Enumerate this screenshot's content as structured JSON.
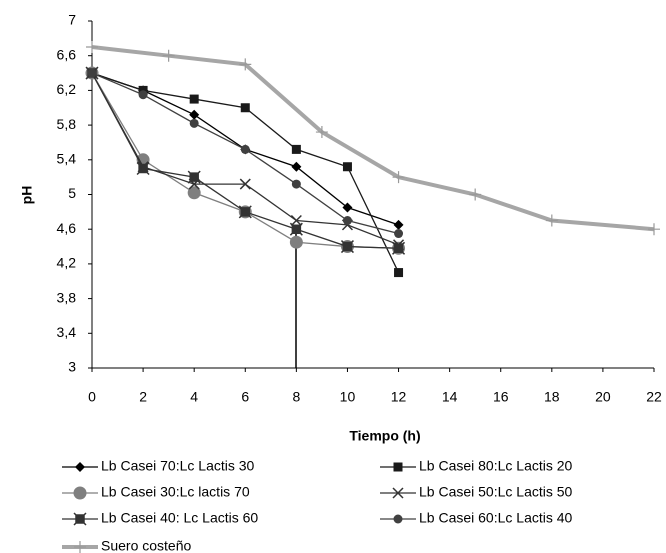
{
  "chart_data": {
    "type": "line",
    "x_label": "Tiempo (h)",
    "y_label": "pH",
    "x": [
      0,
      2,
      4,
      6,
      8,
      10,
      12
    ],
    "xlim": [
      0,
      22
    ],
    "xticks": [
      0,
      2,
      4,
      6,
      8,
      10,
      12,
      14,
      16,
      18,
      20,
      22
    ],
    "ylim": [
      3,
      7
    ],
    "yticks": [
      3,
      {
        "value": 3.4,
        "label": "3,4"
      },
      {
        "value": 3.8,
        "label": "3,8"
      },
      {
        "value": 4.2,
        "label": "4,2"
      },
      {
        "value": 4.6,
        "label": "4,6"
      },
      5,
      {
        "value": 5.4,
        "label": "5,4"
      },
      {
        "value": 5.8,
        "label": "5,8"
      },
      {
        "value": 6.2,
        "label": "6,2"
      },
      {
        "value": 6.6,
        "label": "6,6"
      },
      7
    ],
    "grid": false,
    "series": [
      {
        "name": "Lb Casei 70:Lc Lactis 30",
        "color": "#000000",
        "marker": "diamond",
        "values": [
          6.4,
          6.2,
          5.92,
          5.52,
          5.32,
          4.85,
          4.65
        ]
      },
      {
        "name": "Lb Casei 80:Lc Lactis 20",
        "color": "#1a1a1a",
        "marker": "square",
        "values": [
          6.4,
          6.2,
          6.1,
          6.0,
          5.52,
          5.32,
          4.1
        ]
      },
      {
        "name": "Lb Casei 30:Lc lactis 70",
        "color": "#7f7f7f",
        "marker": "bigcircle",
        "values": [
          6.4,
          5.4,
          5.02,
          4.8,
          4.45,
          4.4,
          4.38
        ]
      },
      {
        "name": "Lb Casei 50:Lc Lactis 50",
        "color": "#333333",
        "marker": "cross",
        "values": [
          6.4,
          5.32,
          5.12,
          5.12,
          4.7,
          4.65,
          4.42
        ]
      },
      {
        "name": "Lb Casei 40: Lc Lactis 60",
        "color": "#333333",
        "marker": "starsquare",
        "values": [
          6.4,
          5.3,
          5.2,
          4.8,
          4.6,
          4.4,
          4.38
        ]
      },
      {
        "name": "Lb Casei 60:Lc Lactis 40",
        "color": "#404040",
        "marker": "circle",
        "values": [
          6.4,
          6.15,
          5.82,
          5.52,
          5.12,
          4.7,
          4.55
        ]
      },
      {
        "name": "Suero costeño",
        "color": "#a6a6a6",
        "marker": "plus",
        "width": 4,
        "x": [
          0,
          3,
          6,
          9,
          12,
          15,
          18,
          22
        ],
        "values": [
          6.7,
          6.6,
          6.5,
          5.72,
          5.2,
          5.0,
          4.7,
          4.6
        ]
      }
    ]
  }
}
